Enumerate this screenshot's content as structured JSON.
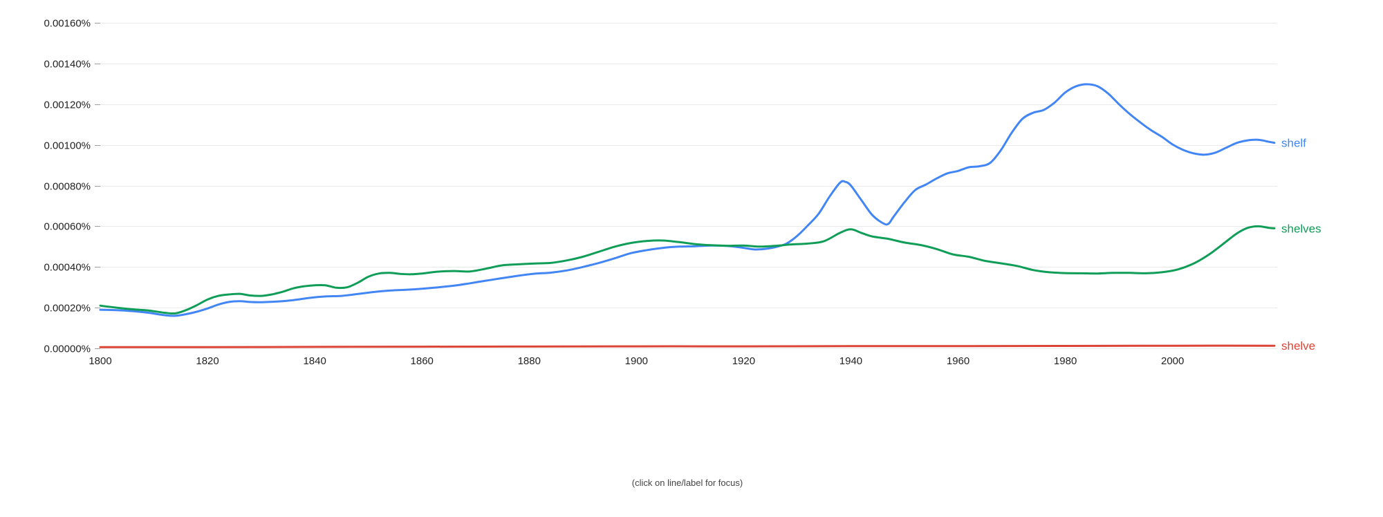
{
  "caption": "(click on line/label for focus)",
  "colors": {
    "grid": "#e9e9e9",
    "tick": "#9e9e9e",
    "axis_text": "#222222",
    "background": "#ffffff"
  },
  "chart_data": {
    "type": "line",
    "title": "",
    "xlabel": "",
    "ylabel": "",
    "x_range": [
      1800,
      2019
    ],
    "y_range_percent": [
      0,
      0.0016
    ],
    "y_tick_step": 0.0002,
    "y_tick_labels": [
      "0.00000%",
      "0.00020%",
      "0.00040%",
      "0.00060%",
      "0.00080%",
      "0.00100%",
      "0.00120%",
      "0.00140%",
      "0.00160%"
    ],
    "x_ticks": [
      1800,
      1820,
      1840,
      1860,
      1880,
      1900,
      1920,
      1940,
      1960,
      1980,
      2000
    ],
    "x_tick_labels": [
      "1800",
      "1820",
      "1840",
      "1860",
      "1880",
      "1900",
      "1920",
      "1940",
      "1960",
      "1980",
      "2000"
    ],
    "grid": "horizontal-only",
    "legend_position": "right-end-of-line-labels",
    "series": [
      {
        "name": "shelf",
        "color": "#4285f4",
        "points": [
          [
            1800,
            0.00019
          ],
          [
            1803,
            0.000188
          ],
          [
            1806,
            0.000183
          ],
          [
            1809,
            0.000175
          ],
          [
            1812,
            0.000163
          ],
          [
            1814,
            0.00016
          ],
          [
            1816,
            0.000168
          ],
          [
            1818,
            0.00018
          ],
          [
            1820,
            0.000196
          ],
          [
            1822,
            0.000215
          ],
          [
            1824,
            0.000228
          ],
          [
            1826,
            0.000232
          ],
          [
            1828,
            0.000228
          ],
          [
            1830,
            0.000227
          ],
          [
            1833,
            0.00023
          ],
          [
            1836,
            0.000237
          ],
          [
            1839,
            0.000248
          ],
          [
            1842,
            0.000255
          ],
          [
            1845,
            0.000258
          ],
          [
            1848,
            0.000267
          ],
          [
            1851,
            0.000277
          ],
          [
            1854,
            0.000284
          ],
          [
            1857,
            0.000288
          ],
          [
            1860,
            0.000293
          ],
          [
            1863,
            0.0003
          ],
          [
            1866,
            0.000308
          ],
          [
            1869,
            0.00032
          ],
          [
            1872,
            0.000333
          ],
          [
            1875,
            0.000345
          ],
          [
            1878,
            0.000357
          ],
          [
            1881,
            0.000367
          ],
          [
            1884,
            0.000372
          ],
          [
            1887,
            0.000383
          ],
          [
            1890,
            0.0004
          ],
          [
            1893,
            0.00042
          ],
          [
            1896,
            0.000443
          ],
          [
            1899,
            0.000468
          ],
          [
            1902,
            0.000483
          ],
          [
            1905,
            0.000494
          ],
          [
            1908,
            0.0005
          ],
          [
            1911,
            0.000502
          ],
          [
            1914,
            0.000505
          ],
          [
            1917,
            0.000503
          ],
          [
            1920,
            0.000494
          ],
          [
            1922,
            0.000486
          ],
          [
            1924,
            0.000489
          ],
          [
            1926,
            0.000498
          ],
          [
            1928,
            0.000515
          ],
          [
            1930,
            0.000553
          ],
          [
            1932,
            0.000605
          ],
          [
            1934,
            0.000662
          ],
          [
            1936,
            0.000745
          ],
          [
            1938,
            0.000815
          ],
          [
            1939,
            0.000818
          ],
          [
            1940,
            0.0008
          ],
          [
            1942,
            0.000727
          ],
          [
            1944,
            0.000655
          ],
          [
            1946,
            0.000615
          ],
          [
            1947,
            0.000612
          ],
          [
            1948,
            0.000648
          ],
          [
            1950,
            0.000718
          ],
          [
            1952,
            0.000778
          ],
          [
            1954,
            0.000805
          ],
          [
            1956,
            0.000835
          ],
          [
            1958,
            0.00086
          ],
          [
            1960,
            0.000872
          ],
          [
            1962,
            0.00089
          ],
          [
            1964,
            0.000895
          ],
          [
            1966,
            0.000912
          ],
          [
            1968,
            0.000975
          ],
          [
            1970,
            0.00106
          ],
          [
            1972,
            0.001128
          ],
          [
            1974,
            0.001158
          ],
          [
            1976,
            0.001172
          ],
          [
            1978,
            0.001208
          ],
          [
            1980,
            0.001258
          ],
          [
            1982,
            0.001288
          ],
          [
            1984,
            0.001298
          ],
          [
            1986,
            0.001288
          ],
          [
            1988,
            0.001252
          ],
          [
            1990,
            0.0012
          ],
          [
            1992,
            0.001152
          ],
          [
            1994,
            0.00111
          ],
          [
            1996,
            0.001072
          ],
          [
            1998,
            0.00104
          ],
          [
            2000,
            0.001002
          ],
          [
            2002,
            0.000975
          ],
          [
            2004,
            0.000958
          ],
          [
            2006,
            0.000952
          ],
          [
            2008,
            0.000962
          ],
          [
            2010,
            0.000986
          ],
          [
            2012,
            0.00101
          ],
          [
            2014,
            0.001022
          ],
          [
            2016,
            0.001025
          ],
          [
            2018,
            0.001015
          ],
          [
            2019,
            0.00101
          ]
        ]
      },
      {
        "name": "shelves",
        "color": "#0f9d58",
        "points": [
          [
            1800,
            0.00021
          ],
          [
            1803,
            0.0002
          ],
          [
            1806,
            0.000192
          ],
          [
            1809,
            0.000186
          ],
          [
            1812,
            0.000175
          ],
          [
            1814,
            0.000172
          ],
          [
            1816,
            0.000188
          ],
          [
            1818,
            0.000212
          ],
          [
            1820,
            0.00024
          ],
          [
            1822,
            0.000258
          ],
          [
            1824,
            0.000265
          ],
          [
            1826,
            0.000268
          ],
          [
            1828,
            0.00026
          ],
          [
            1830,
            0.000258
          ],
          [
            1832,
            0.000265
          ],
          [
            1834,
            0.000278
          ],
          [
            1836,
            0.000295
          ],
          [
            1838,
            0.000305
          ],
          [
            1840,
            0.00031
          ],
          [
            1842,
            0.00031
          ],
          [
            1844,
            0.000298
          ],
          [
            1846,
            0.0003
          ],
          [
            1848,
            0.000322
          ],
          [
            1850,
            0.000352
          ],
          [
            1852,
            0.000368
          ],
          [
            1854,
            0.000371
          ],
          [
            1856,
            0.000366
          ],
          [
            1858,
            0.000364
          ],
          [
            1860,
            0.000368
          ],
          [
            1863,
            0.000377
          ],
          [
            1866,
            0.00038
          ],
          [
            1869,
            0.000378
          ],
          [
            1872,
            0.000392
          ],
          [
            1875,
            0.000408
          ],
          [
            1878,
            0.000413
          ],
          [
            1881,
            0.000417
          ],
          [
            1884,
            0.00042
          ],
          [
            1887,
            0.000432
          ],
          [
            1890,
            0.00045
          ],
          [
            1893,
            0.000475
          ],
          [
            1896,
            0.0005
          ],
          [
            1899,
            0.000518
          ],
          [
            1902,
            0.000528
          ],
          [
            1905,
            0.00053
          ],
          [
            1908,
            0.000522
          ],
          [
            1911,
            0.000512
          ],
          [
            1914,
            0.000507
          ],
          [
            1917,
            0.000504
          ],
          [
            1920,
            0.000505
          ],
          [
            1923,
            0.0005
          ],
          [
            1926,
            0.000504
          ],
          [
            1929,
            0.000511
          ],
          [
            1932,
            0.000515
          ],
          [
            1935,
            0.000527
          ],
          [
            1938,
            0.000568
          ],
          [
            1940,
            0.000585
          ],
          [
            1942,
            0.000567
          ],
          [
            1944,
            0.00055
          ],
          [
            1947,
            0.000538
          ],
          [
            1950,
            0.00052
          ],
          [
            1953,
            0.000508
          ],
          [
            1956,
            0.000488
          ],
          [
            1959,
            0.000462
          ],
          [
            1962,
            0.00045
          ],
          [
            1965,
            0.00043
          ],
          [
            1968,
            0.000418
          ],
          [
            1971,
            0.000405
          ],
          [
            1974,
            0.000385
          ],
          [
            1977,
            0.000374
          ],
          [
            1980,
            0.00037
          ],
          [
            1983,
            0.000369
          ],
          [
            1986,
            0.000368
          ],
          [
            1989,
            0.000371
          ],
          [
            1992,
            0.000371
          ],
          [
            1995,
            0.000369
          ],
          [
            1998,
            0.000374
          ],
          [
            2001,
            0.000388
          ],
          [
            2004,
            0.000418
          ],
          [
            2007,
            0.000465
          ],
          [
            2010,
            0.000525
          ],
          [
            2012,
            0.000565
          ],
          [
            2014,
            0.000592
          ],
          [
            2016,
            0.0006
          ],
          [
            2018,
            0.000592
          ],
          [
            2019,
            0.00059
          ]
        ]
      },
      {
        "name": "shelve",
        "color": "#db4437",
        "points": [
          [
            1800,
            6e-06
          ],
          [
            1820,
            6e-06
          ],
          [
            1840,
            7e-06
          ],
          [
            1860,
            8e-06
          ],
          [
            1880,
            9e-06
          ],
          [
            1900,
            1e-05
          ],
          [
            1920,
            1e-05
          ],
          [
            1940,
            1.1e-05
          ],
          [
            1960,
            1.1e-05
          ],
          [
            1980,
            1.2e-05
          ],
          [
            2000,
            1.3e-05
          ],
          [
            2019,
            1.3e-05
          ]
        ]
      }
    ]
  }
}
